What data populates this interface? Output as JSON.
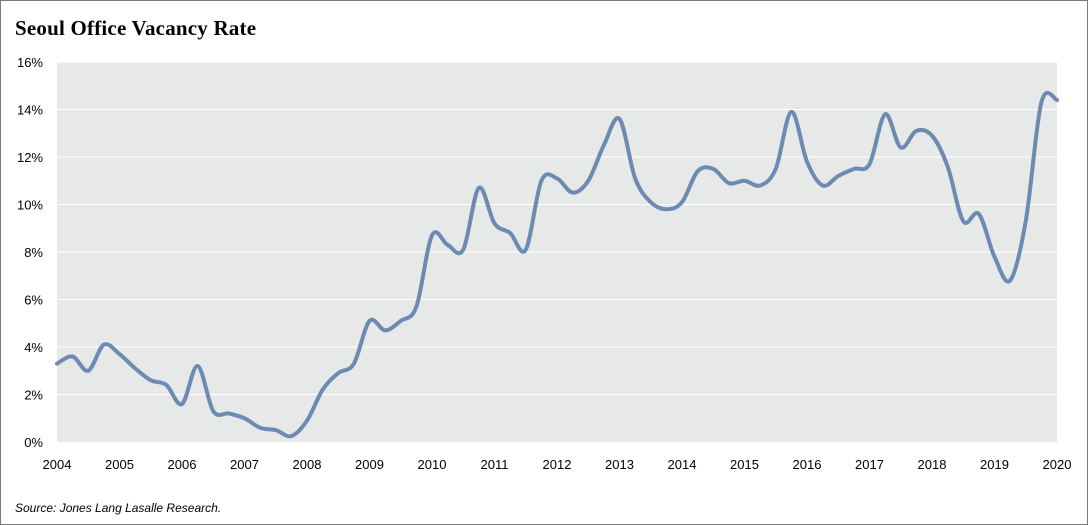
{
  "title": "Seoul Office Vacancy Rate",
  "source": "Source: Jones Lang Lasalle Research.",
  "colors": {
    "line": "#6d8bb2",
    "plot_background": "#e7e8e8",
    "gridline": "#ffffff"
  },
  "chart_data": {
    "type": "line",
    "title": "Seoul Office Vacancy Rate",
    "xlabel": "",
    "ylabel": "",
    "x_ticks": [
      "2004",
      "2005",
      "2006",
      "2007",
      "2008",
      "2009",
      "2010",
      "2011",
      "2012",
      "2013",
      "2014",
      "2015",
      "2016",
      "2017",
      "2018",
      "2019",
      "2020"
    ],
    "y_ticks": [
      "0%",
      "2%",
      "4%",
      "6%",
      "8%",
      "10%",
      "12%",
      "14%",
      "16%"
    ],
    "xlim": [
      2004,
      2020
    ],
    "ylim": [
      0,
      16
    ],
    "grid": true,
    "legend": "none",
    "series": [
      {
        "x": [
          2004.0,
          2004.25,
          2004.5,
          2004.75,
          2005.0,
          2005.25,
          2005.5,
          2005.75,
          2006.0,
          2006.25,
          2006.5,
          2006.75,
          2007.0,
          2007.25,
          2007.5,
          2007.75,
          2008.0,
          2008.25,
          2008.5,
          2008.75,
          2009.0,
          2009.25,
          2009.5,
          2009.75,
          2010.0,
          2010.25,
          2010.5,
          2010.75,
          2011.0,
          2011.25,
          2011.5,
          2011.75,
          2012.0,
          2012.25,
          2012.5,
          2012.75,
          2013.0,
          2013.25,
          2013.5,
          2013.75,
          2014.0,
          2014.25,
          2014.5,
          2014.75,
          2015.0,
          2015.25,
          2015.5,
          2015.75,
          2016.0,
          2016.25,
          2016.5,
          2016.75,
          2017.0,
          2017.25,
          2017.5,
          2017.75,
          2018.0,
          2018.25,
          2018.5,
          2018.75,
          2019.0,
          2019.25,
          2019.5,
          2019.75,
          2020.0
        ],
        "values": [
          3.3,
          3.6,
          3.0,
          4.1,
          3.7,
          3.1,
          2.6,
          2.4,
          1.6,
          3.2,
          1.3,
          1.2,
          1.0,
          0.6,
          0.5,
          0.25,
          0.9,
          2.2,
          2.9,
          3.3,
          5.1,
          4.7,
          5.1,
          5.7,
          8.7,
          8.3,
          8.1,
          10.7,
          9.2,
          8.8,
          8.1,
          11.0,
          11.1,
          10.5,
          11.0,
          12.5,
          13.6,
          11.1,
          10.1,
          9.8,
          10.1,
          11.4,
          11.5,
          10.9,
          11.0,
          10.8,
          11.5,
          13.9,
          11.8,
          10.8,
          11.2,
          11.5,
          11.7,
          13.8,
          12.4,
          13.1,
          12.9,
          11.6,
          9.3,
          9.6,
          7.8,
          6.8,
          9.3,
          14.3,
          14.4
        ]
      }
    ]
  }
}
